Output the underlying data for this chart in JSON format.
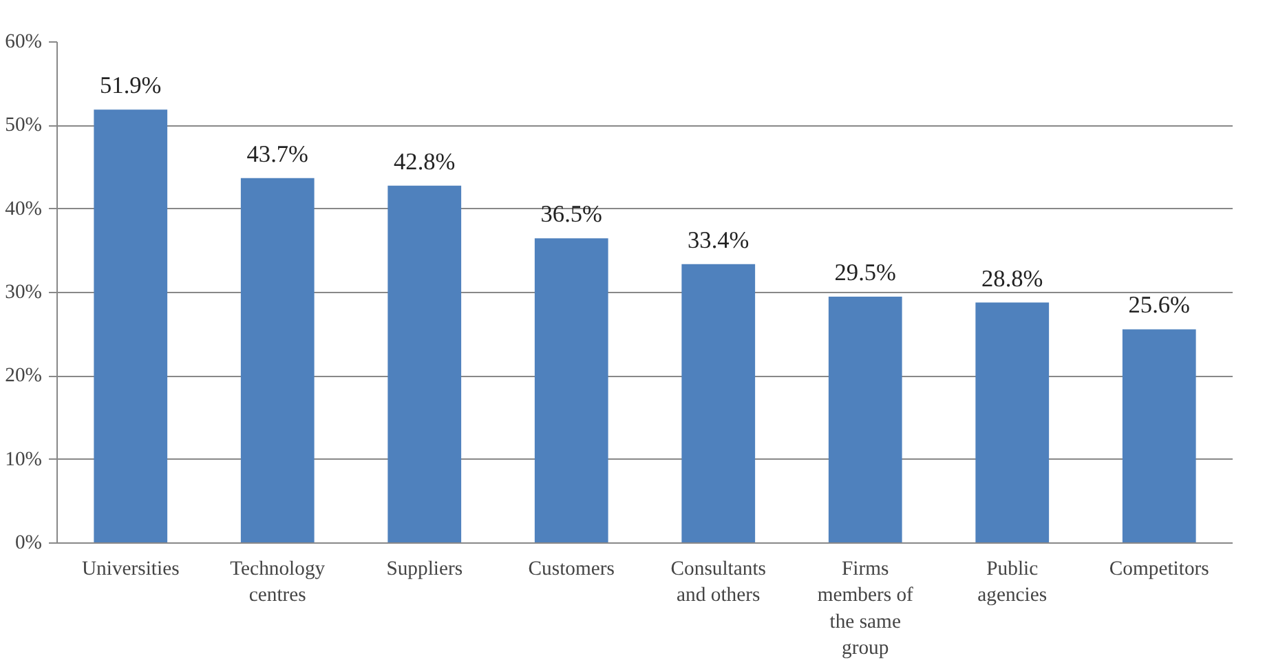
{
  "chart_data": {
    "type": "bar",
    "categories": [
      "Universities",
      "Technology centres",
      "Suppliers",
      "Customers",
      "Consultants and others",
      "Firms members of the same group",
      "Public agencies",
      "Competitors"
    ],
    "values": [
      51.9,
      43.7,
      42.8,
      36.5,
      33.4,
      29.5,
      28.8,
      25.6
    ],
    "value_labels": [
      "51.9%",
      "43.7%",
      "42.8%",
      "36.5%",
      "33.4%",
      "29.5%",
      "28.8%",
      "25.6%"
    ],
    "color": "#4f81bd",
    "ylim": [
      0,
      60
    ],
    "yticks": [
      {
        "value": 0,
        "label": "0%"
      },
      {
        "value": 10,
        "label": "10%"
      },
      {
        "value": 20,
        "label": "20%"
      },
      {
        "value": 30,
        "label": "30%"
      },
      {
        "value": 40,
        "label": "40%"
      },
      {
        "value": 50,
        "label": "50%"
      },
      {
        "value": 60,
        "label": "60%"
      }
    ],
    "grid": "y"
  }
}
